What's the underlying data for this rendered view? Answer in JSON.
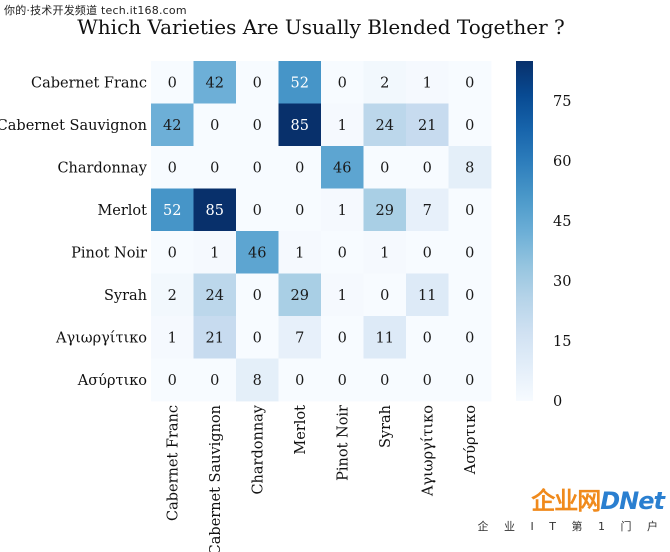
{
  "watermark_top": "你的·技术开发频道 tech.it168.com",
  "watermark_logo": {
    "part1": "企业网",
    "part2": "D",
    "part3": "Net",
    "sub": "企 业 I T 第 1 门 户"
  },
  "chart_data": {
    "type": "heatmap",
    "title": "Which Varieties Are Usually Blended Together ?",
    "row_labels": [
      "Cabernet Franc",
      "Cabernet Sauvignon",
      "Chardonnay",
      "Merlot",
      "Pinot Noir",
      "Syrah",
      "Αγιωργίτικο",
      "Ασύρτικο"
    ],
    "col_labels": [
      "Cabernet Franc",
      "Cabernet Sauvignon",
      "Chardonnay",
      "Merlot",
      "Pinot Noir",
      "Syrah",
      "Αγιωργίτικο",
      "Ασύρτικο"
    ],
    "values": [
      [
        0,
        42,
        0,
        52,
        0,
        2,
        1,
        0
      ],
      [
        42,
        0,
        0,
        85,
        1,
        24,
        21,
        0
      ],
      [
        0,
        0,
        0,
        0,
        46,
        0,
        0,
        8
      ],
      [
        52,
        85,
        0,
        0,
        1,
        29,
        7,
        0
      ],
      [
        0,
        1,
        46,
        1,
        0,
        1,
        0,
        0
      ],
      [
        2,
        24,
        0,
        29,
        1,
        0,
        11,
        0
      ],
      [
        1,
        21,
        0,
        7,
        0,
        11,
        0,
        0
      ],
      [
        0,
        0,
        8,
        0,
        0,
        0,
        0,
        0
      ]
    ],
    "colorbar": {
      "min": 0,
      "max": 85,
      "ticks": [
        0,
        15,
        30,
        45,
        60,
        75
      ],
      "colormap": "Blues"
    }
  }
}
